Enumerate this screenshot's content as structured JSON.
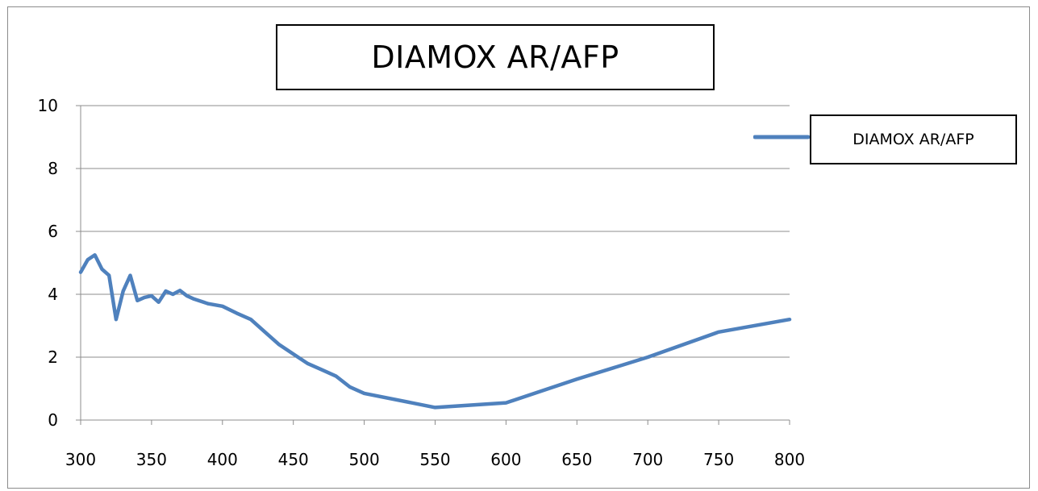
{
  "chart_data": {
    "type": "line",
    "title": "DIAMOX AR/AFP",
    "xlabel": "",
    "ylabel": "",
    "xlim": [
      300,
      800
    ],
    "ylim": [
      0,
      10
    ],
    "x_ticks": [
      300,
      350,
      400,
      450,
      500,
      550,
      600,
      650,
      700,
      750,
      800
    ],
    "y_ticks": [
      0,
      2,
      4,
      6,
      8,
      10
    ],
    "grid": "horizontal",
    "legend_position": "right",
    "series": [
      {
        "name": "DIAMOX AR/AFP",
        "color": "#4f81bd",
        "x": [
          300,
          305,
          310,
          315,
          320,
          325,
          330,
          335,
          340,
          345,
          350,
          355,
          360,
          365,
          370,
          375,
          380,
          390,
          400,
          410,
          420,
          430,
          440,
          450,
          460,
          470,
          480,
          490,
          500,
          550,
          600,
          650,
          700,
          750,
          800
        ],
        "y": [
          4.7,
          5.1,
          5.25,
          4.8,
          4.6,
          3.2,
          4.1,
          4.6,
          3.8,
          3.9,
          3.95,
          3.75,
          4.1,
          4.0,
          4.12,
          3.95,
          3.85,
          3.7,
          3.62,
          3.4,
          3.2,
          2.8,
          2.4,
          2.1,
          1.8,
          1.6,
          1.4,
          1.05,
          0.85,
          0.4,
          0.55,
          1.3,
          2.0,
          2.8,
          3.2
        ]
      }
    ]
  }
}
